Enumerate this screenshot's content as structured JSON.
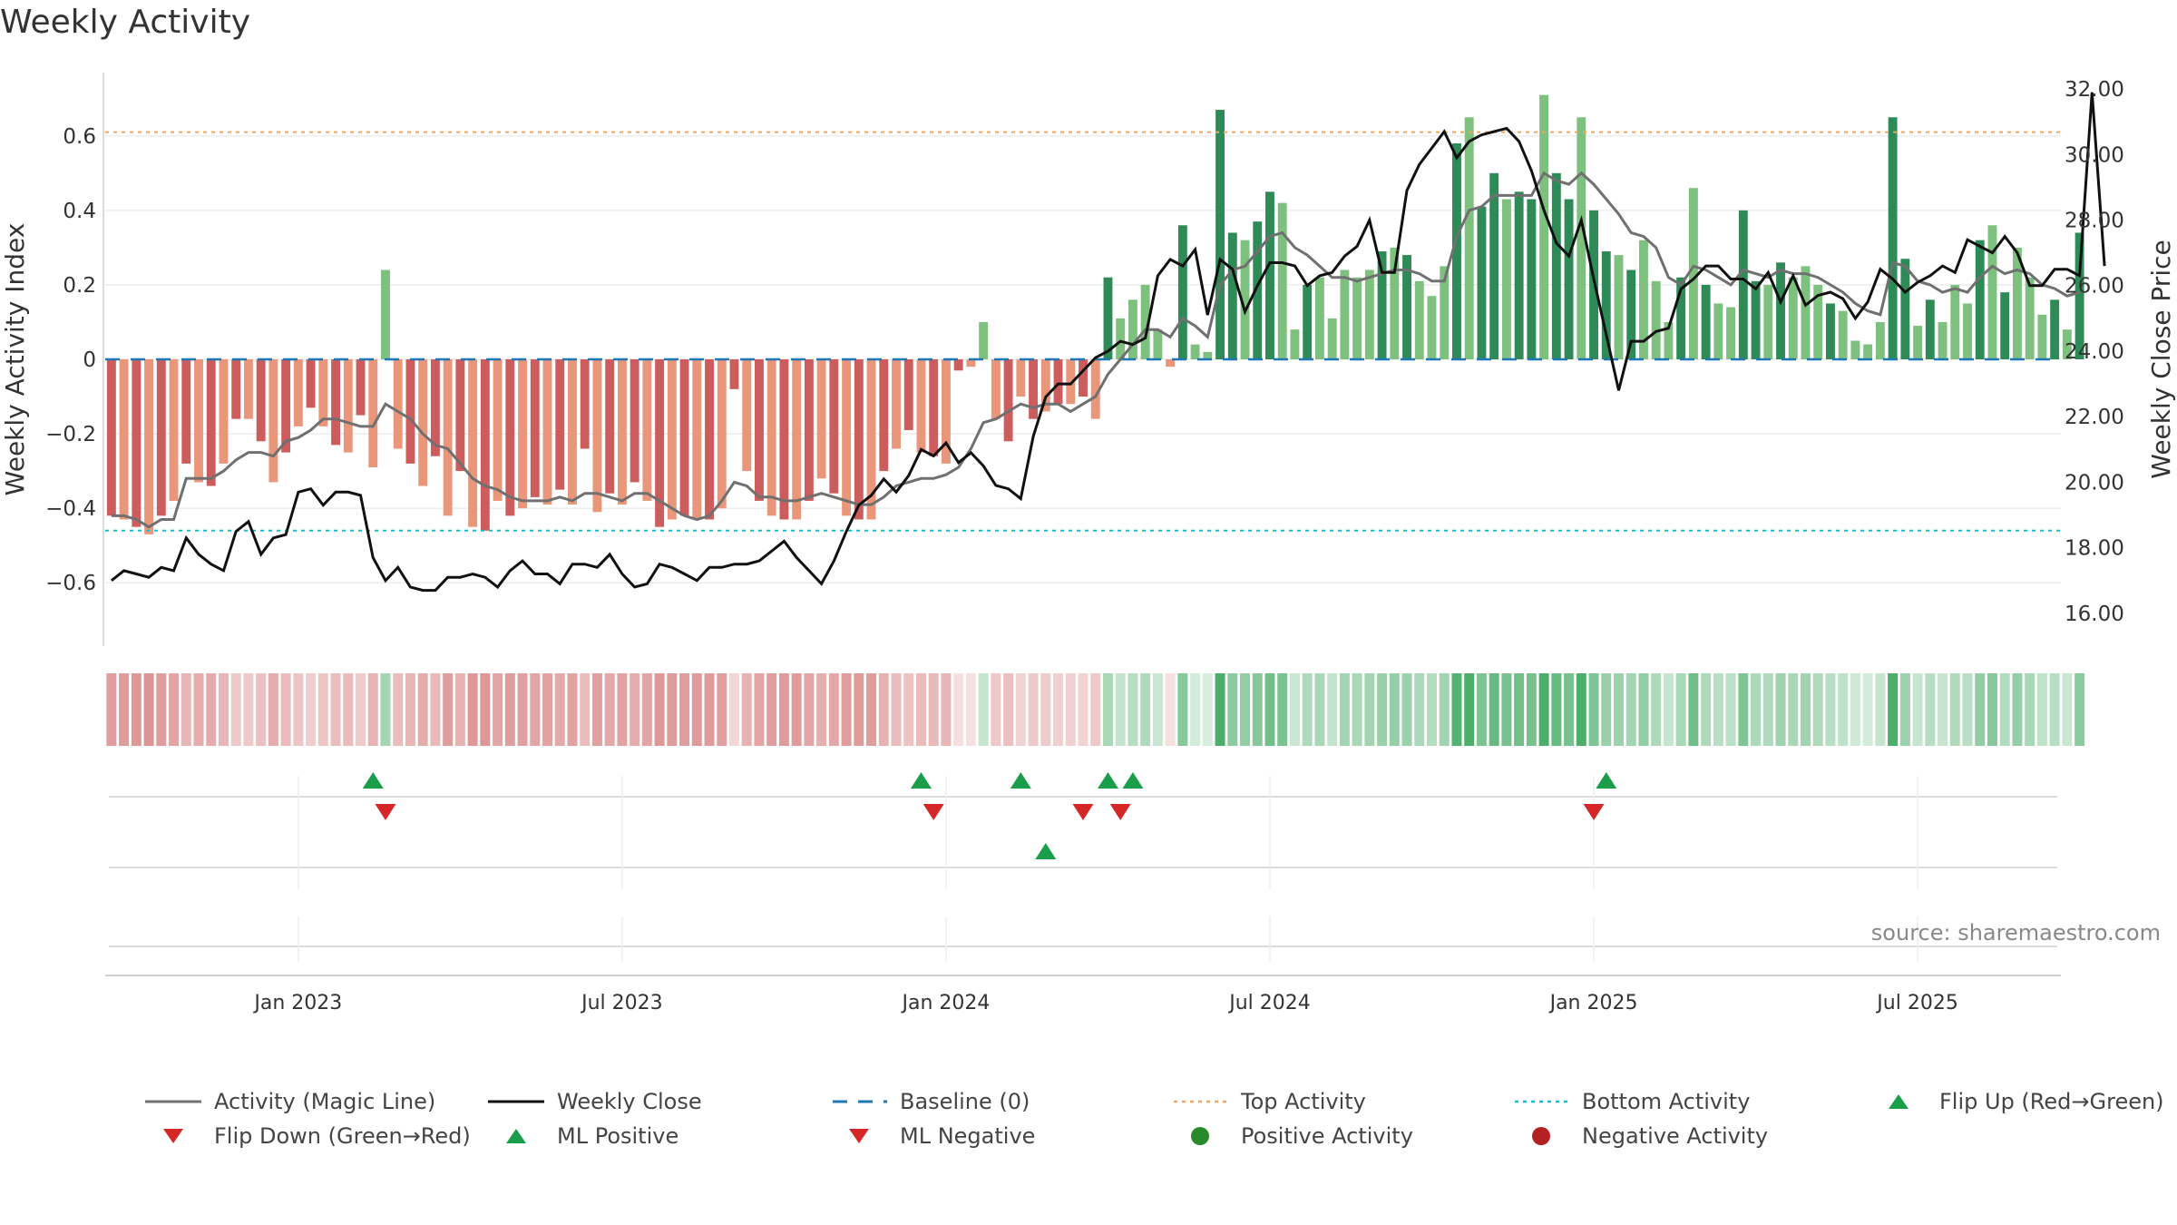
{
  "title": "Weekly Activity",
  "source": "source: sharemaestro.com",
  "colors": {
    "pos_dark": "#2e8b57",
    "pos_light": "#7ec07e",
    "neg_dark": "#cd5c5c",
    "neg_light": "#e9967a",
    "magic_line": "#707070",
    "close_line": "#111111",
    "baseline": "#1f77b4",
    "top": "#f4a460",
    "bottom": "#17becf",
    "flip_up": "#1a9e4a",
    "flip_down": "#d62728",
    "pos_dot": "#2a8a2a",
    "neg_dot": "#b22222"
  },
  "chart_data": {
    "type": "bar",
    "title": "Weekly Activity",
    "ylabel": "Weekly Activity Index",
    "y2label": "Weekly Close Price",
    "ylim": [
      -0.77,
      0.77
    ],
    "y2lim": [
      15.0,
      32.5
    ],
    "yticks": [
      {
        "v": 0.6,
        "label": "0.6"
      },
      {
        "v": 0.4,
        "label": "0.4"
      },
      {
        "v": 0.2,
        "label": "0.2"
      },
      {
        "v": 0,
        "label": "0"
      },
      {
        "v": -0.2,
        "label": "−0.2"
      },
      {
        "v": -0.4,
        "label": "−0.4"
      },
      {
        "v": -0.6,
        "label": "−0.6"
      }
    ],
    "y2ticks": [
      {
        "v": 32,
        "label": "32.00"
      },
      {
        "v": 30,
        "label": "30.00"
      },
      {
        "v": 28,
        "label": "28.00"
      },
      {
        "v": 26,
        "label": "26.00"
      },
      {
        "v": 24,
        "label": "24.00"
      },
      {
        "v": 22,
        "label": "22.00"
      },
      {
        "v": 20,
        "label": "20.00"
      },
      {
        "v": 18,
        "label": "18.00"
      },
      {
        "v": 16,
        "label": "16.00"
      }
    ],
    "xticks": [
      {
        "week": 15,
        "label": "Jan 2023"
      },
      {
        "week": 41,
        "label": "Jul 2023"
      },
      {
        "week": 67,
        "label": "Jan 2024"
      },
      {
        "week": 93,
        "label": "Jul 2024"
      },
      {
        "week": 119,
        "label": "Jan 2025"
      },
      {
        "week": 145,
        "label": "Jul 2025"
      }
    ],
    "top_activity": 0.61,
    "bottom_activity": -0.46,
    "weeks": 157,
    "activity": [
      -0.42,
      -0.43,
      -0.45,
      -0.47,
      -0.42,
      -0.38,
      -0.28,
      -0.33,
      -0.34,
      -0.28,
      -0.16,
      -0.16,
      -0.22,
      -0.33,
      -0.25,
      -0.18,
      -0.13,
      -0.18,
      -0.23,
      -0.25,
      -0.15,
      -0.29,
      0.24,
      -0.24,
      -0.28,
      -0.34,
      -0.26,
      -0.42,
      -0.3,
      -0.45,
      -0.46,
      -0.38,
      -0.42,
      -0.4,
      -0.37,
      -0.39,
      -0.35,
      -0.39,
      -0.24,
      -0.41,
      -0.36,
      -0.39,
      -0.33,
      -0.38,
      -0.45,
      -0.43,
      -0.42,
      -0.43,
      -0.43,
      -0.4,
      -0.08,
      -0.3,
      -0.38,
      -0.42,
      -0.43,
      -0.43,
      -0.38,
      -0.32,
      -0.36,
      -0.42,
      -0.43,
      -0.43,
      -0.3,
      -0.24,
      -0.19,
      -0.25,
      -0.26,
      -0.28,
      -0.03,
      -0.02,
      0.1,
      -0.16,
      -0.22,
      -0.1,
      -0.16,
      -0.14,
      -0.12,
      -0.12,
      -0.1,
      -0.16,
      0.22,
      0.11,
      0.16,
      0.2,
      0.08,
      -0.02,
      0.36,
      0.04,
      0.02,
      0.67,
      0.34,
      0.32,
      0.37,
      0.45,
      0.42,
      0.08,
      0.2,
      0.22,
      0.11,
      0.24,
      0.22,
      0.24,
      0.29,
      0.3,
      0.28,
      0.21,
      0.17,
      0.25,
      0.58,
      0.65,
      0.41,
      0.5,
      0.43,
      0.45,
      0.43,
      0.71,
      0.5,
      0.43,
      0.65,
      0.4,
      0.29,
      0.28,
      0.24,
      0.32,
      0.21,
      0.1,
      0.22,
      0.46,
      0.2,
      0.15,
      0.14,
      0.4,
      0.21,
      0.2,
      0.26,
      0.22,
      0.25,
      0.2,
      0.15,
      0.13,
      0.05,
      0.04,
      0.1,
      0.65,
      0.27,
      0.09,
      0.16,
      0.1,
      0.2,
      0.15,
      0.32,
      0.36,
      0.18,
      0.3,
      0.22,
      0.12,
      0.16,
      0.08,
      0.34
    ],
    "magic_line": [
      -0.42,
      -0.42,
      -0.43,
      -0.45,
      -0.43,
      -0.43,
      -0.32,
      -0.32,
      -0.32,
      -0.3,
      -0.27,
      -0.25,
      -0.25,
      -0.26,
      -0.22,
      -0.21,
      -0.19,
      -0.16,
      -0.16,
      -0.17,
      -0.18,
      -0.18,
      -0.12,
      -0.14,
      -0.16,
      -0.2,
      -0.23,
      -0.24,
      -0.28,
      -0.32,
      -0.34,
      -0.35,
      -0.37,
      -0.38,
      -0.38,
      -0.38,
      -0.37,
      -0.38,
      -0.36,
      -0.36,
      -0.37,
      -0.38,
      -0.36,
      -0.36,
      -0.38,
      -0.4,
      -0.42,
      -0.43,
      -0.42,
      -0.38,
      -0.33,
      -0.34,
      -0.37,
      -0.37,
      -0.38,
      -0.38,
      -0.37,
      -0.36,
      -0.37,
      -0.38,
      -0.39,
      -0.39,
      -0.37,
      -0.34,
      -0.33,
      -0.32,
      -0.32,
      -0.31,
      -0.29,
      -0.24,
      -0.17,
      -0.16,
      -0.14,
      -0.12,
      -0.13,
      -0.12,
      -0.12,
      -0.14,
      -0.12,
      -0.1,
      -0.04,
      0.0,
      0.04,
      0.08,
      0.08,
      0.06,
      0.11,
      0.09,
      0.06,
      0.2,
      0.24,
      0.25,
      0.29,
      0.33,
      0.34,
      0.3,
      0.28,
      0.25,
      0.22,
      0.22,
      0.21,
      0.22,
      0.23,
      0.24,
      0.24,
      0.23,
      0.21,
      0.21,
      0.33,
      0.4,
      0.41,
      0.44,
      0.44,
      0.44,
      0.44,
      0.5,
      0.48,
      0.47,
      0.5,
      0.47,
      0.43,
      0.39,
      0.34,
      0.33,
      0.3,
      0.22,
      0.2,
      0.25,
      0.24,
      0.22,
      0.2,
      0.24,
      0.23,
      0.22,
      0.24,
      0.23,
      0.23,
      0.22,
      0.2,
      0.18,
      0.15,
      0.13,
      0.12,
      0.26,
      0.25,
      0.21,
      0.2,
      0.18,
      0.19,
      0.18,
      0.22,
      0.25,
      0.23,
      0.24,
      0.23,
      0.2,
      0.19,
      0.17,
      0.18
    ],
    "close": [
      17.0,
      17.3,
      17.2,
      17.1,
      17.4,
      17.3,
      18.3,
      17.8,
      17.5,
      17.3,
      18.5,
      18.8,
      17.8,
      18.3,
      18.4,
      19.7,
      19.8,
      19.3,
      19.7,
      19.7,
      19.6,
      17.7,
      17.0,
      17.4,
      16.8,
      16.7,
      16.7,
      17.1,
      17.1,
      17.2,
      17.1,
      16.8,
      17.3,
      17.6,
      17.2,
      17.2,
      16.9,
      17.5,
      17.5,
      17.4,
      17.8,
      17.2,
      16.8,
      16.9,
      17.5,
      17.4,
      17.2,
      17.0,
      17.4,
      17.4,
      17.5,
      17.5,
      17.6,
      17.9,
      18.2,
      17.7,
      17.3,
      16.9,
      17.6,
      18.5,
      19.3,
      19.6,
      20.1,
      19.7,
      20.2,
      21.0,
      20.8,
      21.2,
      20.6,
      20.9,
      20.5,
      19.9,
      19.8,
      19.5,
      21.4,
      22.6,
      23.0,
      23.0,
      23.4,
      23.8,
      24.0,
      24.3,
      24.2,
      24.4,
      26.3,
      26.8,
      26.6,
      27.1,
      25.1,
      26.8,
      26.5,
      25.2,
      26.0,
      26.7,
      26.7,
      26.6,
      26.0,
      26.3,
      26.4,
      26.9,
      27.2,
      28.0,
      26.4,
      26.4,
      28.9,
      29.7,
      30.2,
      30.7,
      29.9,
      30.4,
      30.6,
      30.7,
      30.8,
      30.4,
      29.5,
      28.3,
      27.3,
      26.9,
      28.0,
      26.2,
      24.5,
      22.8,
      24.3,
      24.3,
      24.6,
      24.7,
      25.9,
      26.2,
      26.6,
      26.6,
      26.2,
      26.2,
      25.9,
      26.4,
      25.5,
      26.3,
      25.4,
      25.7,
      25.8,
      25.6,
      25.0,
      25.5,
      26.5,
      26.2,
      25.8,
      26.1,
      26.3,
      26.6,
      26.4,
      27.4,
      27.2,
      27.0,
      27.5,
      27.0,
      26.0,
      26.0,
      26.5,
      26.5,
      26.3,
      31.9,
      26.6
    ]
  },
  "flip_up_weeks": [
    21,
    65,
    73,
    80,
    82,
    120
  ],
  "flip_down_weeks": [
    22,
    66,
    78,
    81,
    119
  ],
  "ml_positive_weeks": [
    75
  ],
  "ml_negative_weeks": [],
  "legend": [
    {
      "label": "Activity (Magic Line)",
      "kind": "line",
      "color": "#707070"
    },
    {
      "label": "Weekly Close",
      "kind": "line",
      "color": "#111111"
    },
    {
      "label": "Baseline (0)",
      "kind": "dash",
      "color": "#1f77b4"
    },
    {
      "label": "Top Activity",
      "kind": "dot",
      "color": "#f4a460"
    },
    {
      "label": "Bottom Activity",
      "kind": "dot",
      "color": "#17becf"
    },
    {
      "label": "Flip Up (Red→Green)",
      "kind": "tri-up",
      "color": "#1a9e4a"
    },
    {
      "label": "Flip Down (Green→Red)",
      "kind": "tri-down",
      "color": "#d62728"
    },
    {
      "label": "ML Positive",
      "kind": "tri-up",
      "color": "#1a9e4a"
    },
    {
      "label": "ML Negative",
      "kind": "tri-down",
      "color": "#d62728"
    },
    {
      "label": "Positive Activity",
      "kind": "circle",
      "color": "#2a8a2a"
    },
    {
      "label": "Negative Activity",
      "kind": "circle",
      "color": "#b22222"
    }
  ]
}
